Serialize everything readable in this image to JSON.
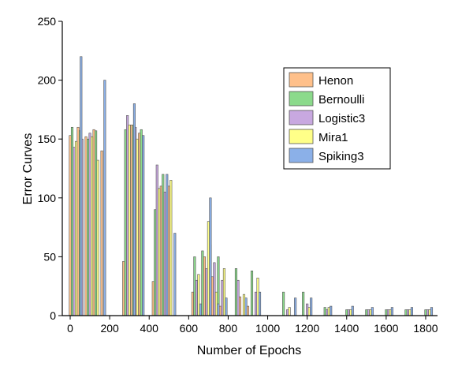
{
  "chart_data": {
    "type": "bar",
    "xlabel": "Number of Epochs",
    "ylabel": "Error Curves",
    "xlim": [
      -40,
      1860
    ],
    "ylim": [
      0,
      250
    ],
    "xticks": [
      0,
      200,
      400,
      600,
      800,
      1000,
      1200,
      1400,
      1600,
      1800
    ],
    "yticks": [
      0,
      50,
      100,
      150,
      200,
      250
    ],
    "legend_position": "top-right",
    "bar_width": 10,
    "series": [
      {
        "name": "Henon",
        "color": "#FFC08A",
        "points": [
          {
            "x": 0,
            "y": 153
          },
          {
            "x": 40,
            "y": 160
          },
          {
            "x": 80,
            "y": 152
          },
          {
            "x": 120,
            "y": 158
          },
          {
            "x": 160,
            "y": 140
          },
          {
            "x": 270,
            "y": 46
          },
          {
            "x": 310,
            "y": 162
          },
          {
            "x": 350,
            "y": 155
          },
          {
            "x": 420,
            "y": 29
          },
          {
            "x": 460,
            "y": 110
          },
          {
            "x": 500,
            "y": 110
          },
          {
            "x": 620,
            "y": 20
          },
          {
            "x": 680,
            "y": 50
          },
          {
            "x": 720,
            "y": 33
          },
          {
            "x": 760,
            "y": 8
          },
          {
            "x": 860,
            "y": 16
          },
          {
            "x": 900,
            "y": 8
          }
        ]
      },
      {
        "name": "Bernoulli",
        "color": "#8BDA8B",
        "points": [
          {
            "x": 10,
            "y": 160
          },
          {
            "x": 50,
            "y": 157
          },
          {
            "x": 90,
            "y": 150
          },
          {
            "x": 130,
            "y": 157
          },
          {
            "x": 280,
            "y": 158
          },
          {
            "x": 320,
            "y": 162
          },
          {
            "x": 360,
            "y": 158
          },
          {
            "x": 430,
            "y": 90
          },
          {
            "x": 470,
            "y": 120
          },
          {
            "x": 630,
            "y": 50
          },
          {
            "x": 670,
            "y": 55
          },
          {
            "x": 710,
            "y": 60
          },
          {
            "x": 750,
            "y": 50
          },
          {
            "x": 840,
            "y": 40
          },
          {
            "x": 920,
            "y": 38
          },
          {
            "x": 1080,
            "y": 20
          },
          {
            "x": 1180,
            "y": 20
          },
          {
            "x": 1290,
            "y": 7
          },
          {
            "x": 1400,
            "y": 5
          },
          {
            "x": 1500,
            "y": 5
          },
          {
            "x": 1600,
            "y": 5
          },
          {
            "x": 1700,
            "y": 5
          },
          {
            "x": 1800,
            "y": 5
          }
        ]
      },
      {
        "name": "Logistic3",
        "color": "#C8A8E0",
        "points": [
          {
            "x": 20,
            "y": 143
          },
          {
            "x": 60,
            "y": 150
          },
          {
            "x": 100,
            "y": 155
          },
          {
            "x": 290,
            "y": 170
          },
          {
            "x": 330,
            "y": 160
          },
          {
            "x": 440,
            "y": 128
          },
          {
            "x": 480,
            "y": 105
          },
          {
            "x": 640,
            "y": 30
          },
          {
            "x": 690,
            "y": 40
          },
          {
            "x": 730,
            "y": 45
          },
          {
            "x": 770,
            "y": 30
          },
          {
            "x": 850,
            "y": 30
          },
          {
            "x": 940,
            "y": 20
          },
          {
            "x": 1100,
            "y": 5
          },
          {
            "x": 1200,
            "y": 10
          },
          {
            "x": 1300,
            "y": 5
          },
          {
            "x": 1410,
            "y": 5
          },
          {
            "x": 1510,
            "y": 5
          },
          {
            "x": 1610,
            "y": 5
          },
          {
            "x": 1710,
            "y": 5
          },
          {
            "x": 1810,
            "y": 5
          }
        ]
      },
      {
        "name": "Mira1",
        "color": "#FFFF88",
        "points": [
          {
            "x": 30,
            "y": 148
          },
          {
            "x": 110,
            "y": 152
          },
          {
            "x": 140,
            "y": 132
          },
          {
            "x": 300,
            "y": 162
          },
          {
            "x": 340,
            "y": 150
          },
          {
            "x": 450,
            "y": 108
          },
          {
            "x": 510,
            "y": 115
          },
          {
            "x": 650,
            "y": 35
          },
          {
            "x": 700,
            "y": 80
          },
          {
            "x": 740,
            "y": 20
          },
          {
            "x": 780,
            "y": 40
          },
          {
            "x": 880,
            "y": 18
          },
          {
            "x": 950,
            "y": 32
          },
          {
            "x": 1110,
            "y": 7
          },
          {
            "x": 1210,
            "y": 7
          },
          {
            "x": 1310,
            "y": 7
          },
          {
            "x": 1420,
            "y": 5
          },
          {
            "x": 1520,
            "y": 5
          },
          {
            "x": 1620,
            "y": 5
          },
          {
            "x": 1720,
            "y": 5
          },
          {
            "x": 1820,
            "y": 5
          }
        ]
      },
      {
        "name": "Spiking3",
        "color": "#8BB0E8",
        "points": [
          {
            "x": 55,
            "y": 220
          },
          {
            "x": 175,
            "y": 200
          },
          {
            "x": 325,
            "y": 180
          },
          {
            "x": 370,
            "y": 153
          },
          {
            "x": 490,
            "y": 120
          },
          {
            "x": 530,
            "y": 70
          },
          {
            "x": 660,
            "y": 10
          },
          {
            "x": 710,
            "y": 100
          },
          {
            "x": 750,
            "y": 10
          },
          {
            "x": 790,
            "y": 15
          },
          {
            "x": 890,
            "y": 15
          },
          {
            "x": 960,
            "y": 20
          },
          {
            "x": 1140,
            "y": 15
          },
          {
            "x": 1220,
            "y": 15
          },
          {
            "x": 1320,
            "y": 8
          },
          {
            "x": 1430,
            "y": 8
          },
          {
            "x": 1530,
            "y": 7
          },
          {
            "x": 1630,
            "y": 7
          },
          {
            "x": 1730,
            "y": 7
          },
          {
            "x": 1830,
            "y": 7
          }
        ]
      }
    ]
  }
}
